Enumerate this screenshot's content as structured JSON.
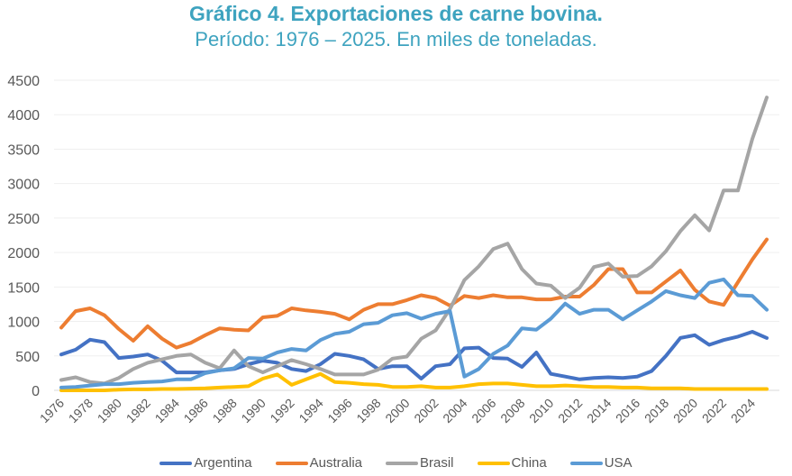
{
  "chart_data": {
    "type": "line",
    "title": "Gráfico 4. Exportaciones de carne bovina.",
    "subtitle": "Período: 1976 – 2025. En miles de toneladas.",
    "xlabel": "",
    "ylabel": "",
    "ylim": [
      0,
      4500
    ],
    "yticks": [
      "0",
      "500",
      "1000",
      "1500",
      "2000",
      "2500",
      "3000",
      "3500",
      "4000",
      "4500"
    ],
    "ytick_values": [
      0,
      500,
      1000,
      1500,
      2000,
      2500,
      3000,
      3500,
      4000,
      4500
    ],
    "xtick_labels": [
      "1976",
      "1978",
      "1980",
      "1982",
      "1984",
      "1986",
      "1988",
      "1990",
      "1992",
      "1994",
      "1996",
      "1998",
      "2000",
      "2002",
      "2004",
      "2006",
      "2008",
      "2010",
      "2012",
      "2014",
      "2016",
      "2018",
      "2020",
      "2022",
      "2024"
    ],
    "grid": true,
    "legend_position": "bottom",
    "x": [
      1976,
      1977,
      1978,
      1979,
      1980,
      1981,
      1982,
      1983,
      1984,
      1985,
      1986,
      1987,
      1988,
      1989,
      1990,
      1991,
      1992,
      1993,
      1994,
      1995,
      1996,
      1997,
      1998,
      1999,
      2000,
      2001,
      2002,
      2003,
      2004,
      2005,
      2006,
      2007,
      2008,
      2009,
      2010,
      2011,
      2012,
      2013,
      2014,
      2015,
      2016,
      2017,
      2018,
      2019,
      2020,
      2021,
      2022,
      2023,
      2024,
      2025
    ],
    "series": [
      {
        "name": "Argentina",
        "color": "#4472c4",
        "values": [
          520,
          590,
          735,
          700,
          470,
          490,
          520,
          430,
          260,
          260,
          260,
          290,
          310,
          380,
          430,
          400,
          310,
          280,
          380,
          530,
          500,
          450,
          310,
          350,
          350,
          170,
          350,
          380,
          610,
          620,
          470,
          460,
          340,
          550,
          240,
          200,
          160,
          180,
          190,
          180,
          200,
          280,
          500,
          760,
          800,
          660,
          730,
          780,
          850,
          760
        ]
      },
      {
        "name": "Australia",
        "color": "#ed7d31",
        "values": [
          910,
          1150,
          1190,
          1090,
          890,
          720,
          930,
          750,
          620,
          690,
          800,
          900,
          880,
          870,
          1060,
          1080,
          1190,
          1160,
          1140,
          1110,
          1030,
          1170,
          1250,
          1250,
          1310,
          1380,
          1340,
          1230,
          1370,
          1340,
          1380,
          1350,
          1350,
          1320,
          1320,
          1360,
          1360,
          1530,
          1760,
          1760,
          1420,
          1420,
          1580,
          1740,
          1460,
          1290,
          1240,
          1570,
          1900,
          2190
        ]
      },
      {
        "name": "Brasil",
        "color": "#a5a5a5",
        "values": [
          150,
          190,
          120,
          100,
          180,
          310,
          400,
          450,
          500,
          520,
          400,
          320,
          580,
          350,
          260,
          350,
          440,
          380,
          310,
          230,
          230,
          230,
          300,
          460,
          490,
          750,
          870,
          1180,
          1600,
          1800,
          2050,
          2130,
          1760,
          1550,
          1520,
          1340,
          1490,
          1790,
          1840,
          1650,
          1660,
          1800,
          2020,
          2310,
          2540,
          2320,
          2900,
          2900,
          3650,
          4250
        ]
      },
      {
        "name": "China",
        "color": "#ffc000",
        "values": [
          0,
          0,
          0,
          0,
          10,
          15,
          15,
          20,
          20,
          25,
          30,
          40,
          50,
          60,
          170,
          230,
          80,
          160,
          240,
          120,
          110,
          90,
          80,
          50,
          50,
          60,
          40,
          40,
          60,
          90,
          100,
          100,
          80,
          60,
          60,
          70,
          60,
          50,
          50,
          40,
          40,
          30,
          30,
          30,
          20,
          20,
          20,
          20,
          20,
          20
        ]
      },
      {
        "name": "USA",
        "color": "#5b9bd5",
        "values": [
          40,
          50,
          70,
          90,
          90,
          110,
          120,
          130,
          160,
          160,
          250,
          290,
          320,
          470,
          460,
          550,
          600,
          580,
          730,
          820,
          850,
          960,
          980,
          1090,
          1120,
          1040,
          1110,
          1150,
          200,
          310,
          530,
          650,
          900,
          880,
          1040,
          1260,
          1110,
          1170,
          1170,
          1030,
          1160,
          1290,
          1440,
          1380,
          1340,
          1560,
          1610,
          1380,
          1370,
          1170
        ]
      }
    ]
  }
}
